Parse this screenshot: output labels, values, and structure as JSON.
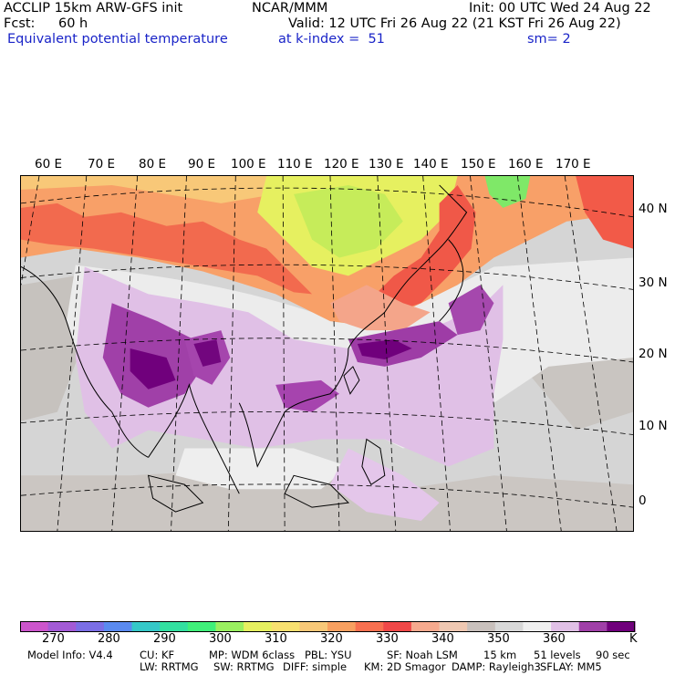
{
  "header": {
    "model": "ACCLIP 15km ARW-GFS init",
    "org": "NCAR/MMM",
    "init": "Init: 00 UTC Wed 24 Aug 22",
    "fcst_label": "Fcst:",
    "fcst_value": "60 h",
    "valid": "Valid: 12 UTC Fri 26 Aug 22 (21 KST Fri 26 Aug 22)",
    "field": "Equivalent potential temperature",
    "level": "at k-index =  51",
    "smoothing": "sm= 2"
  },
  "map": {
    "longitude_labels": [
      "60 E",
      "70 E",
      "80 E",
      "90 E",
      "100 E",
      "110 E",
      "120 E",
      "130 E",
      "140 E",
      "150 E",
      "160 E",
      "170 E"
    ],
    "latitude_labels": [
      "40 N",
      "30 N",
      "20 N",
      "10 N",
      "0"
    ]
  },
  "colorbar": {
    "colors": [
      "#cc55cc",
      "#a35ad6",
      "#7b6ee6",
      "#5a8af0",
      "#35c8c8",
      "#33e0a0",
      "#40f07a",
      "#9af060",
      "#e6f060",
      "#f8e070",
      "#f8c878",
      "#f8a060",
      "#f87050",
      "#f04848",
      "#f6aa8e",
      "#efc8b2",
      "#c8c0bc",
      "#d8d8d8",
      "#f0f0f0",
      "#e0c0e6",
      "#a040a8",
      "#70007c"
    ],
    "tick_labels": [
      "270",
      "280",
      "290",
      "300",
      "310",
      "320",
      "330",
      "340",
      "350",
      "360"
    ],
    "units": "K"
  },
  "footer": {
    "line1": [
      "Model Info: V4.4",
      "CU: KF",
      "MP: WDM 6class",
      "PBL: YSU",
      "SF: Noah LSM",
      "15 km",
      "51 levels",
      "90 sec"
    ],
    "line2": [
      "LW: RRTMG",
      "SW: RRTMG",
      "DIFF: simple",
      "KM: 2D Smagor",
      "DAMP: Rayleigh3",
      "SFLAY: MM5"
    ]
  }
}
